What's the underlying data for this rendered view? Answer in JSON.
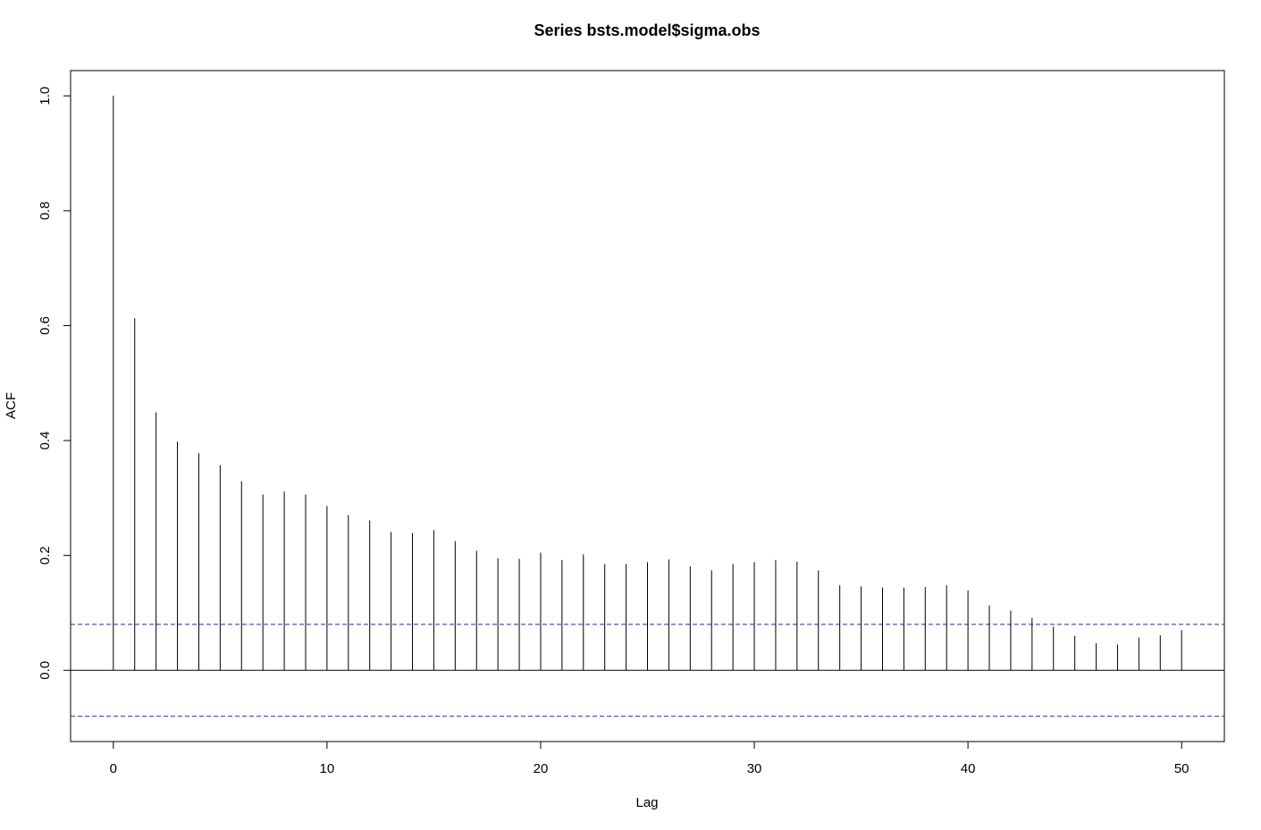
{
  "chart_data": {
    "type": "bar",
    "title": "Series  bsts.model$sigma.obs",
    "xlabel": "Lag",
    "ylabel": "ACF",
    "xlim": [
      -2,
      52
    ],
    "ylim": [
      -0.124,
      1.044
    ],
    "x_ticks": [
      0,
      10,
      20,
      30,
      40,
      50
    ],
    "y_ticks": [
      0.0,
      0.2,
      0.4,
      0.6,
      0.8,
      1.0
    ],
    "y_tick_labels": [
      "0.0",
      "0.2",
      "0.4",
      "0.6",
      "0.8",
      "1.0"
    ],
    "confidence_limit": 0.08,
    "confidence_color": "#3b3bd0",
    "bar_color": "#000000",
    "lags": [
      0,
      1,
      2,
      3,
      4,
      5,
      6,
      7,
      8,
      9,
      10,
      11,
      12,
      13,
      14,
      15,
      16,
      17,
      18,
      19,
      20,
      21,
      22,
      23,
      24,
      25,
      26,
      27,
      28,
      29,
      30,
      31,
      32,
      33,
      34,
      35,
      36,
      37,
      38,
      39,
      40,
      41,
      42,
      43,
      44,
      45,
      46,
      47,
      48,
      49,
      50
    ],
    "values": [
      1.0,
      0.613,
      0.449,
      0.398,
      0.378,
      0.357,
      0.329,
      0.306,
      0.311,
      0.306,
      0.286,
      0.27,
      0.261,
      0.241,
      0.239,
      0.244,
      0.225,
      0.208,
      0.195,
      0.194,
      0.205,
      0.192,
      0.202,
      0.185,
      0.185,
      0.188,
      0.193,
      0.181,
      0.174,
      0.185,
      0.188,
      0.192,
      0.189,
      0.174,
      0.148,
      0.146,
      0.144,
      0.144,
      0.145,
      0.148,
      0.139,
      0.113,
      0.104,
      0.091,
      0.076,
      0.06,
      0.047,
      0.045,
      0.057,
      0.061,
      0.07
    ]
  }
}
